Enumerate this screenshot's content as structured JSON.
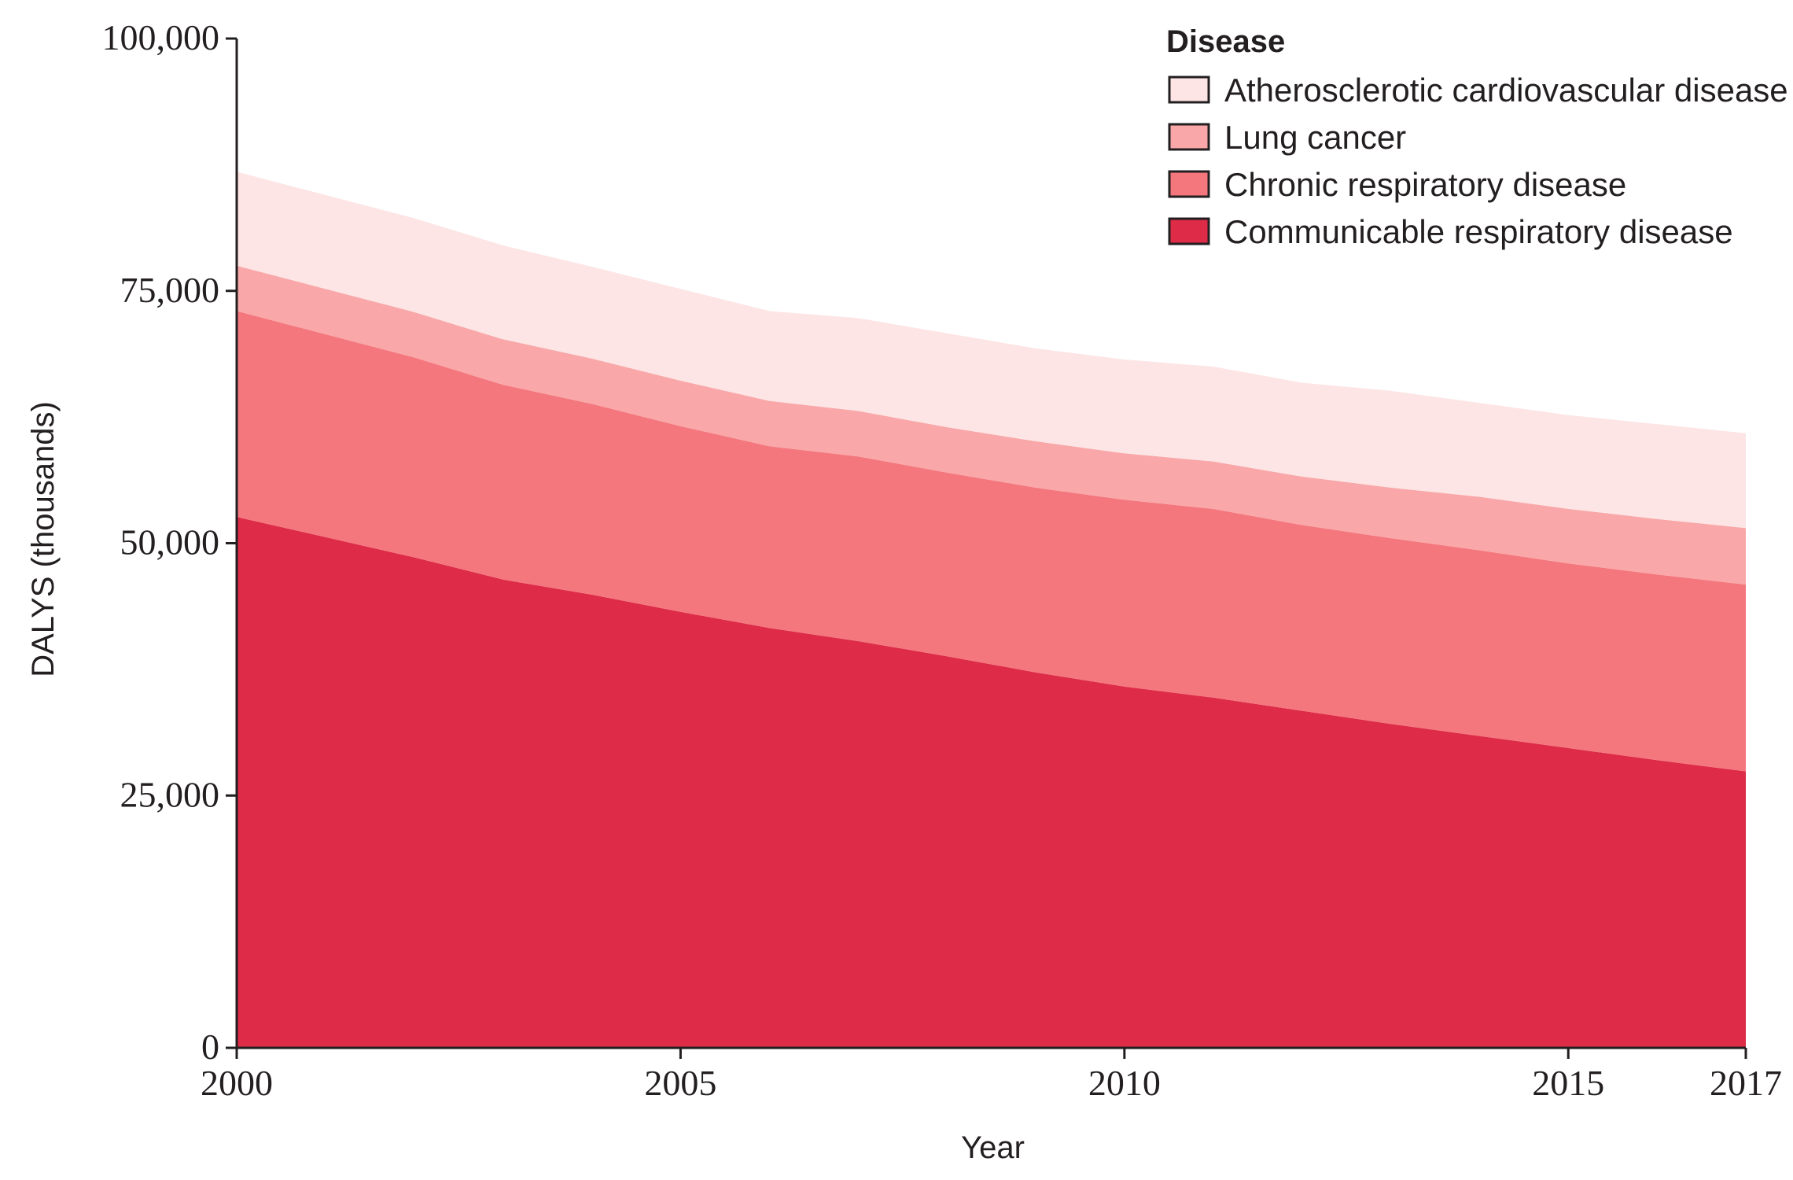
{
  "chart_data": {
    "type": "area",
    "stacked": true,
    "xlabel": "Year",
    "ylabel": "DALYS (thousands)",
    "xlim": [
      2000,
      2017
    ],
    "ylim": [
      0,
      100000
    ],
    "x_ticks": [
      2000,
      2005,
      2010,
      2015,
      2017
    ],
    "x_tick_labels": [
      "2000",
      "2005",
      "2010",
      "2015",
      "2017"
    ],
    "y_ticks": [
      0,
      25000,
      50000,
      75000,
      100000
    ],
    "y_tick_labels": [
      "0",
      "25,000",
      "50,000",
      "75,000",
      "100,000"
    ],
    "grid": false,
    "legend": {
      "title": "Disease",
      "position": "top-right"
    },
    "x": [
      2000,
      2001,
      2002,
      2003,
      2004,
      2005,
      2006,
      2007,
      2008,
      2009,
      2010,
      2011,
      2012,
      2013,
      2014,
      2015,
      2016,
      2017
    ],
    "series": [
      {
        "name": "Communicable respiratory disease",
        "color": "#de2b47",
        "values": [
          52600,
          50600,
          48600,
          46400,
          44900,
          43200,
          41600,
          40300,
          38800,
          37200,
          35800,
          34700,
          33400,
          32100,
          30900,
          29700,
          28500,
          27400
        ]
      },
      {
        "name": "Chronic respiratory disease",
        "color": "#f4777e",
        "values": [
          20400,
          20100,
          19800,
          19300,
          18900,
          18400,
          18000,
          18300,
          18200,
          18300,
          18500,
          18700,
          18400,
          18400,
          18400,
          18300,
          18400,
          18500
        ]
      },
      {
        "name": "Lung cancer",
        "color": "#f9a7a8",
        "values": [
          4500,
          4500,
          4500,
          4500,
          4500,
          4500,
          4500,
          4500,
          4500,
          4600,
          4600,
          4700,
          4800,
          5000,
          5300,
          5400,
          5500,
          5600
        ]
      },
      {
        "name": "Atherosclerotic cardiovascular disease",
        "color": "#fde5e5",
        "values": [
          9300,
          9300,
          9300,
          9300,
          9100,
          9100,
          8900,
          9200,
          9300,
          9200,
          9300,
          9400,
          9300,
          9600,
          9300,
          9300,
          9400,
          9400
        ]
      }
    ]
  }
}
